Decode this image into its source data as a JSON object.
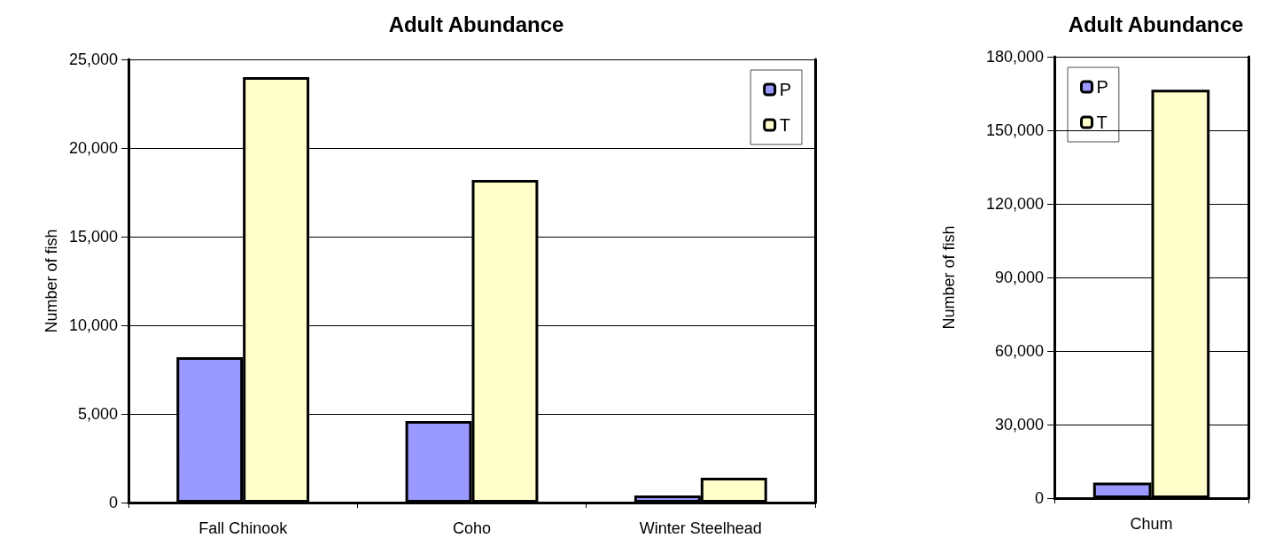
{
  "chart_data": [
    {
      "type": "bar",
      "title": "Adult Abundance",
      "ylabel": "Number of fish",
      "categories": [
        "Fall Chinook",
        "Coho",
        "Winter Steelhead"
      ],
      "series": [
        {
          "name": "P",
          "color": "#9999ff",
          "values": [
            8200,
            4600,
            400
          ]
        },
        {
          "name": "T",
          "color": "#ffffcc",
          "values": [
            24000,
            18200,
            1400
          ]
        }
      ],
      "ylim": [
        0,
        25000
      ],
      "yticks": [
        {
          "value": 0,
          "label": "0"
        },
        {
          "value": 5000,
          "label": "5,000"
        },
        {
          "value": 10000,
          "label": "10,000"
        },
        {
          "value": 15000,
          "label": "15,000"
        },
        {
          "value": 20000,
          "label": "20,000"
        },
        {
          "value": 25000,
          "label": "25,000"
        }
      ],
      "grid": "y",
      "legend": "top right"
    },
    {
      "type": "bar",
      "title": "Adult Abundance",
      "ylabel": "Number of fish",
      "categories": [
        "Chum"
      ],
      "series": [
        {
          "name": "P",
          "color": "#9999ff",
          "values": [
            6300
          ]
        },
        {
          "name": "T",
          "color": "#ffffcc",
          "values": [
            166500
          ]
        }
      ],
      "ylim": [
        0,
        180000
      ],
      "yticks": [
        {
          "value": 0,
          "label": "0"
        },
        {
          "value": 30000,
          "label": "30,000"
        },
        {
          "value": 60000,
          "label": "60,000"
        },
        {
          "value": 90000,
          "label": "90,000"
        },
        {
          "value": 120000,
          "label": "120,000"
        },
        {
          "value": 150000,
          "label": "150,000"
        },
        {
          "value": 180000,
          "label": "180,000"
        }
      ],
      "grid": "y",
      "legend": "top left"
    }
  ]
}
